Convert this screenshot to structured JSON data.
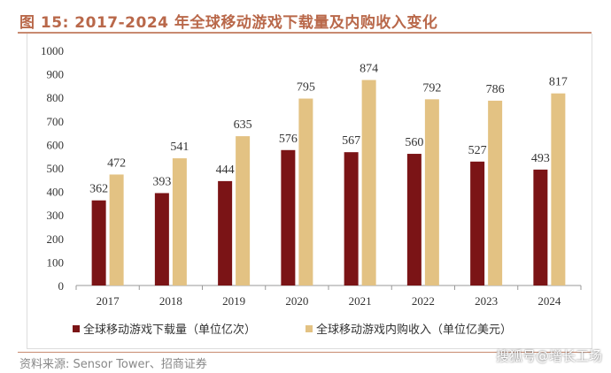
{
  "title": "图 15:  2017-2024 年全球移动游戏下载量及内购收入变化",
  "source": "资料来源:  Sensor Tower、招商证券",
  "watermark": "搜狐号@增长工场",
  "chart_data": {
    "type": "bar",
    "title": "图 15:  2017-2024 年全球移动游戏下载量及内购收入变化",
    "categories": [
      "2017",
      "2018",
      "2019",
      "2020",
      "2021",
      "2022",
      "2023",
      "2024"
    ],
    "series": [
      {
        "name": "全球移动游戏下载量（单位亿次）",
        "values": [
          362,
          393,
          444,
          576,
          567,
          560,
          527,
          493
        ],
        "color": "#7b1416"
      },
      {
        "name": "全球移动游戏内购收入（单位亿美元）",
        "values": [
          472,
          541,
          635,
          795,
          874,
          792,
          786,
          817
        ],
        "color": "#e3c283"
      }
    ],
    "ylim": [
      0,
      1000
    ],
    "yticks": [
      0,
      100,
      200,
      300,
      400,
      500,
      600,
      700,
      800,
      900,
      1000
    ],
    "grid": false,
    "legend": "bottom"
  }
}
